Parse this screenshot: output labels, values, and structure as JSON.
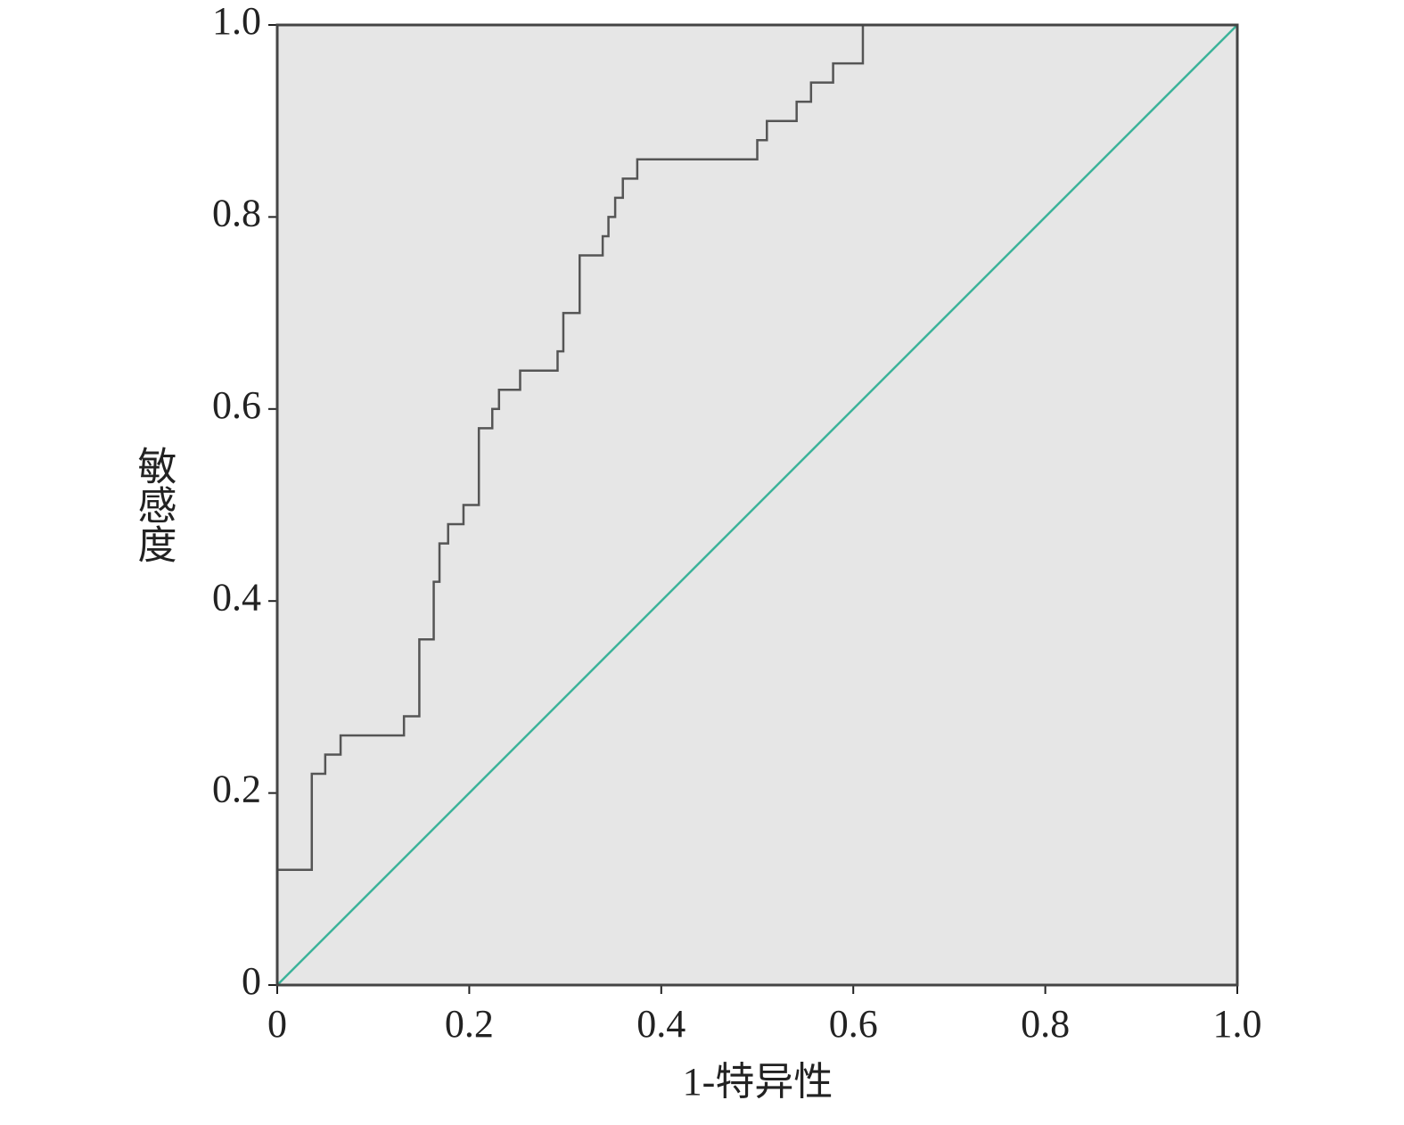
{
  "chart_data": {
    "type": "line",
    "xlabel": "1-特异性",
    "ylabel": "敏感度",
    "background": "#e6e6e6",
    "xlim": [
      0,
      1
    ],
    "ylim": [
      0,
      1
    ],
    "xticks": [
      0,
      0.2,
      0.4,
      0.6,
      0.8,
      {
        "value": 1,
        "label": "1.0"
      }
    ],
    "yticks": [
      0,
      0.2,
      0.4,
      0.6,
      0.8,
      {
        "value": 1,
        "label": "1.0"
      }
    ],
    "series": [
      {
        "color": "#555555",
        "x": [
          0,
          0,
          0.036,
          0.036,
          0.05,
          0.05,
          0.066,
          0.066,
          0.132,
          0.132,
          0.148,
          0.148,
          0.163,
          0.163,
          0.169,
          0.169,
          0.178,
          0.178,
          0.194,
          0.194,
          0.21,
          0.21,
          0.224,
          0.224,
          0.231,
          0.231,
          0.253,
          0.253,
          0.292,
          0.292,
          0.298,
          0.298,
          0.315,
          0.315,
          0.339,
          0.339,
          0.345,
          0.345,
          0.352,
          0.352,
          0.36,
          0.36,
          0.375,
          0.375,
          0.5,
          0.5,
          0.51,
          0.51,
          0.541,
          0.541,
          0.556,
          0.556,
          0.579,
          0.579,
          0.61,
          0.61,
          1
        ],
        "values": [
          0,
          0.12,
          0.12,
          0.22,
          0.22,
          0.24,
          0.24,
          0.26,
          0.26,
          0.28,
          0.28,
          0.36,
          0.36,
          0.42,
          0.42,
          0.46,
          0.46,
          0.48,
          0.48,
          0.5,
          0.5,
          0.58,
          0.58,
          0.6,
          0.6,
          0.62,
          0.62,
          0.64,
          0.64,
          0.66,
          0.66,
          0.7,
          0.7,
          0.76,
          0.76,
          0.78,
          0.78,
          0.8,
          0.8,
          0.82,
          0.82,
          0.84,
          0.84,
          0.86,
          0.86,
          0.88,
          0.88,
          0.9,
          0.9,
          0.92,
          0.92,
          0.94,
          0.94,
          0.96,
          0.96,
          1,
          1
        ]
      },
      {
        "color": "#3cb39a",
        "x": [
          0,
          1
        ],
        "values": [
          0,
          1
        ]
      }
    ]
  }
}
